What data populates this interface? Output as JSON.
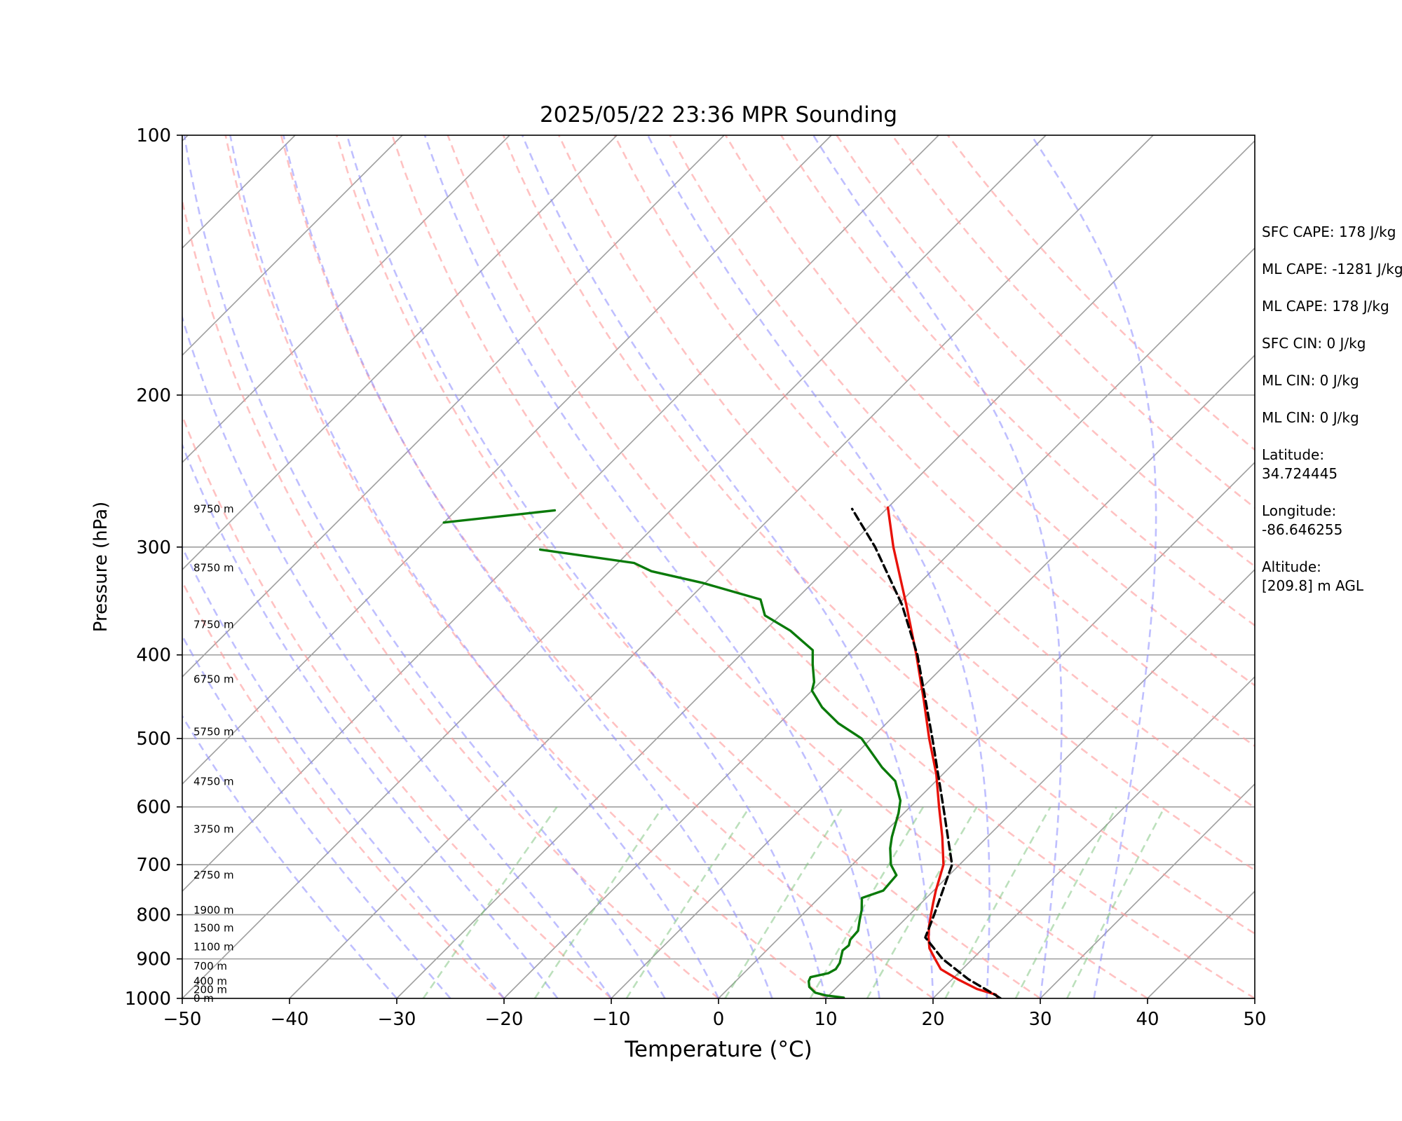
{
  "chart_data": {
    "type": "line",
    "title": "2025/05/22 23:36 MPR Sounding",
    "xlabel": "Temperature (°C)",
    "ylabel": "Pressure (hPa)",
    "xlim": [
      -50,
      50
    ],
    "ylim": [
      1000,
      100
    ],
    "y_scale": "log",
    "skew": "temperature axis skewed",
    "grid": true,
    "x_ticks": [
      -50,
      -40,
      -30,
      -20,
      -10,
      0,
      10,
      20,
      30,
      40,
      50
    ],
    "x_tick_labels": [
      "−50",
      "−40",
      "−30",
      "−20",
      "−10",
      "0",
      "10",
      "20",
      "30",
      "40",
      "50"
    ],
    "y_ticks": [
      1000,
      900,
      800,
      700,
      600,
      500,
      400,
      300,
      200,
      100
    ],
    "y_tick_labels": [
      "1000",
      "900",
      "800",
      "700",
      "600",
      "500",
      "400",
      "300",
      "200",
      "100"
    ],
    "colors": {
      "temperature": "#e8120a",
      "dewpoint": "#0a7a0a",
      "parcel": "#000000",
      "dry_adiabats": "#ff9a9a",
      "moist_adiabats": "#8a8aff",
      "mixing_ratio": "#7ac27a",
      "isotherms": "#9e9e9e"
    },
    "series": [
      {
        "key": "temperature",
        "points": [
          {
            "p": 1000,
            "t": 26.1
          },
          {
            "p": 990,
            "t": 25.5
          },
          {
            "p": 975,
            "t": 23.2
          },
          {
            "p": 950,
            "t": 20.5
          },
          {
            "p": 925,
            "t": 18.0
          },
          {
            "p": 900,
            "t": 16.5
          },
          {
            "p": 875,
            "t": 15.0
          },
          {
            "p": 850,
            "t": 13.9
          },
          {
            "p": 825,
            "t": 12.9
          },
          {
            "p": 800,
            "t": 12.0
          },
          {
            "p": 775,
            "t": 11.1
          },
          {
            "p": 750,
            "t": 10.2
          },
          {
            "p": 700,
            "t": 8.5
          },
          {
            "p": 650,
            "t": 5.8
          },
          {
            "p": 600,
            "t": 2.7
          },
          {
            "p": 550,
            "t": -0.6
          },
          {
            "p": 500,
            "t": -4.6
          },
          {
            "p": 450,
            "t": -8.8
          },
          {
            "p": 400,
            "t": -13.6
          },
          {
            "p": 350,
            "t": -19.2
          },
          {
            "p": 300,
            "t": -25.8
          },
          {
            "p": 270,
            "t": -30.0
          }
        ]
      },
      {
        "key": "dewpoint",
        "points": [
          {
            "p": 998,
            "t": 11.6
          },
          {
            "p": 992,
            "t": 9.7
          },
          {
            "p": 985,
            "t": 8.5
          },
          {
            "p": 970,
            "t": 7.4
          },
          {
            "p": 955,
            "t": 6.8
          },
          {
            "p": 945,
            "t": 6.6
          },
          {
            "p": 935,
            "t": 7.9
          },
          {
            "p": 925,
            "t": 8.2
          },
          {
            "p": 910,
            "t": 8.0
          },
          {
            "p": 880,
            "t": 7.1
          },
          {
            "p": 868,
            "t": 7.2
          },
          {
            "p": 855,
            "t": 6.8
          },
          {
            "p": 835,
            "t": 6.7
          },
          {
            "p": 810,
            "t": 5.8
          },
          {
            "p": 790,
            "t": 5.1
          },
          {
            "p": 765,
            "t": 4.0
          },
          {
            "p": 750,
            "t": 5.3
          },
          {
            "p": 720,
            "t": 5.1
          },
          {
            "p": 700,
            "t": 3.6
          },
          {
            "p": 670,
            "t": 2.0
          },
          {
            "p": 650,
            "t": 1.1
          },
          {
            "p": 610,
            "t": -0.5
          },
          {
            "p": 590,
            "t": -1.5
          },
          {
            "p": 560,
            "t": -3.8
          },
          {
            "p": 540,
            "t": -6.3
          },
          {
            "p": 500,
            "t": -10.9
          },
          {
            "p": 480,
            "t": -14.5
          },
          {
            "p": 460,
            "t": -17.5
          },
          {
            "p": 440,
            "t": -20.0
          },
          {
            "p": 430,
            "t": -20.6
          },
          {
            "p": 410,
            "t": -22.4
          },
          {
            "p": 395,
            "t": -23.7
          },
          {
            "p": 375,
            "t": -27.6
          },
          {
            "p": 360,
            "t": -31.4
          },
          {
            "p": 345,
            "t": -33.3
          },
          {
            "p": 330,
            "t": -40.3
          },
          {
            "p": 320,
            "t": -46.1
          },
          {
            "p": 313,
            "t": -48.5
          },
          {
            "p": 302,
            "t": -58.5
          }
        ]
      },
      {
        "key": "dewpoint-upper",
        "points": [
          {
            "p": 281,
            "t": -70.0
          },
          {
            "p": 272,
            "t": -60.8
          }
        ]
      },
      {
        "key": "parcel",
        "points": [
          {
            "p": 1000,
            "t": 26.3
          },
          {
            "p": 990,
            "t": 25.4
          },
          {
            "p": 950,
            "t": 21.5
          },
          {
            "p": 900,
            "t": 17.2
          },
          {
            "p": 850,
            "t": 13.6
          },
          {
            "p": 800,
            "t": 12.3
          },
          {
            "p": 700,
            "t": 9.3
          },
          {
            "p": 600,
            "t": 3.1
          },
          {
            "p": 500,
            "t": -4.3
          },
          {
            "p": 400,
            "t": -13.5
          },
          {
            "p": 350,
            "t": -19.6
          },
          {
            "p": 300,
            "t": -27.5
          },
          {
            "p": 271,
            "t": -33.2
          }
        ]
      }
    ],
    "height_labels": [
      {
        "p": 1000,
        "text": "0 m"
      },
      {
        "p": 977,
        "text": "200 m"
      },
      {
        "p": 955,
        "text": "400 m"
      },
      {
        "p": 918,
        "text": "700 m"
      },
      {
        "p": 872,
        "text": "1100 m"
      },
      {
        "p": 829,
        "text": "1500 m"
      },
      {
        "p": 790,
        "text": "1900 m"
      },
      {
        "p": 720,
        "text": "2750 m"
      },
      {
        "p": 637,
        "text": "3750 m"
      },
      {
        "p": 561,
        "text": "4750 m"
      },
      {
        "p": 491,
        "text": "5750 m"
      },
      {
        "p": 427,
        "text": "6750 m"
      },
      {
        "p": 369,
        "text": "7750 m"
      },
      {
        "p": 317,
        "text": "8750 m"
      },
      {
        "p": 271,
        "text": "9750 m"
      }
    ],
    "dry_adiabats_theta_c": [
      -20,
      -10,
      0,
      10,
      20,
      30,
      40,
      50,
      60,
      70,
      80,
      90,
      100,
      110,
      120,
      130,
      140
    ],
    "moist_adiabats_c": [
      -30,
      -25,
      -20,
      -15,
      -10,
      -5,
      0,
      5,
      10,
      15,
      20,
      25,
      30,
      35
    ],
    "mixing_ratios_gkg": [
      0.4,
      1,
      2,
      4,
      7,
      10,
      16,
      24,
      32
    ]
  },
  "info": {
    "sfc_cape": "SFC CAPE: 178 J/kg",
    "ml_cape_1": "ML CAPE: -1281 J/kg",
    "ml_cape_2": "ML CAPE: 178 J/kg",
    "sfc_cin": "SFC CIN: 0 J/kg",
    "ml_cin_1": "ML CIN: 0 J/kg",
    "ml_cin_2": "ML CIN: 0 J/kg",
    "latitude_label": "Latitude:",
    "latitude_value": "34.724445",
    "longitude_label": "Longitude:",
    "longitude_value": "-86.646255",
    "altitude_label": "Altitude:",
    "altitude_value": "[209.8] m AGL"
  }
}
